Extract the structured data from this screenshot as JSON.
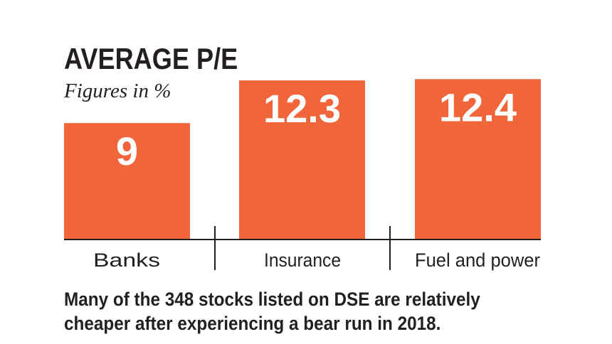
{
  "chart_data": {
    "type": "bar",
    "title": "AVERAGE P/E",
    "subtitle": "Figures in %",
    "categories": [
      "Banks",
      "Insurance",
      "Fuel and power"
    ],
    "values": [
      9,
      12.3,
      12.4
    ],
    "value_labels": [
      "9",
      "12.3",
      "12.4"
    ],
    "bar_color": "#f0653a",
    "grid": false,
    "legend": "none"
  },
  "caption": {
    "line1": "Many of the 348 stocks listed on DSE are relatively",
    "line2": "cheaper after experiencing a bear run in 2018."
  }
}
